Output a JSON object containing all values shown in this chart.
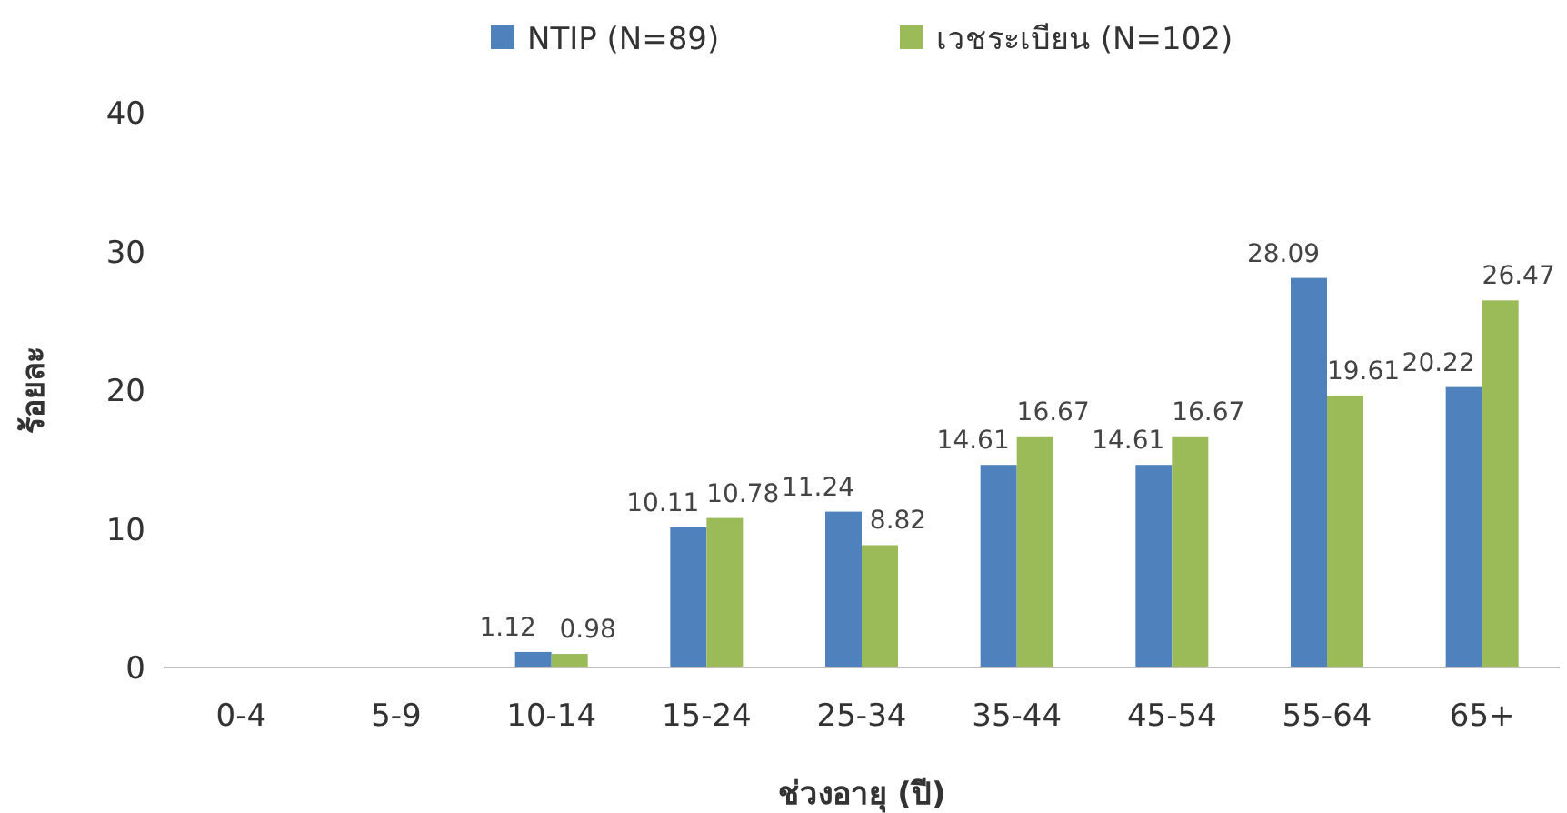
{
  "chart_data": {
    "type": "bar",
    "categories": [
      "0-4",
      "5-9",
      "10-14",
      "15-24",
      "25-34",
      "35-44",
      "45-54",
      "55-64",
      "65+"
    ],
    "series": [
      {
        "name": "NTIP (N=89)",
        "color": "#4f81bd",
        "values": [
          0,
          0,
          1.12,
          10.11,
          11.24,
          14.61,
          14.61,
          28.09,
          20.22
        ],
        "value_labels": [
          null,
          null,
          "1.12",
          "10.11",
          "11.24",
          "14.61",
          "14.61",
          "28.09",
          "20.22"
        ]
      },
      {
        "name": "เวชระเบียน (N=102)",
        "color": "#9bbb59",
        "values": [
          0,
          0,
          0.98,
          10.78,
          8.82,
          16.67,
          16.67,
          19.61,
          26.47
        ],
        "value_labels": [
          null,
          null,
          "0.98",
          "10.78",
          "8.82",
          "16.67",
          "16.67",
          "19.61",
          "26.47"
        ]
      }
    ],
    "ylim": [
      0,
      40
    ],
    "yticks": [
      0,
      10,
      20,
      30,
      40
    ],
    "xlabel": "ช่วงอายุ (ปี)",
    "ylabel": "ร้อยละ",
    "legend": "top"
  }
}
